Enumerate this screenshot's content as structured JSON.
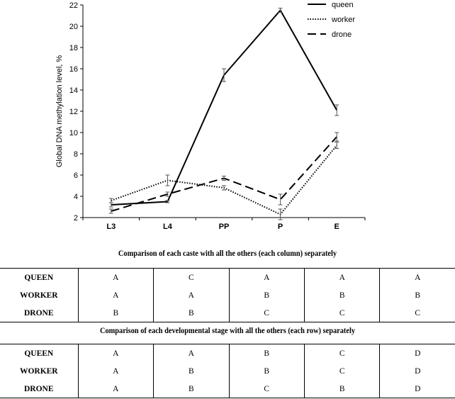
{
  "chart_data": {
    "type": "line",
    "categories": [
      "L3",
      "L4",
      "PP",
      "P",
      "E"
    ],
    "ylabel": "Global DNA methylation level, %",
    "ylim": [
      2,
      22
    ],
    "yticks": [
      2,
      4,
      6,
      8,
      10,
      12,
      14,
      16,
      18,
      20,
      22
    ],
    "grid": false,
    "legend_position": "top-right",
    "series": [
      {
        "name": "queen",
        "style": "solid",
        "values": [
          3.2,
          3.5,
          15.4,
          21.5,
          12.1
        ],
        "errors": [
          0.2,
          0.1,
          0.6,
          0.2,
          0.5
        ]
      },
      {
        "name": "worker",
        "style": "dotted",
        "values": [
          3.6,
          5.5,
          4.8,
          2.3,
          8.8
        ],
        "errors": [
          0.2,
          0.5,
          0.2,
          0.5,
          0.3
        ]
      },
      {
        "name": "drone",
        "style": "dashed",
        "values": [
          2.6,
          4.2,
          5.7,
          3.7,
          9.6
        ],
        "errors": [
          0.2,
          0.2,
          0.2,
          0.5,
          0.4
        ]
      }
    ]
  },
  "table1": {
    "caption": "Comparison of each caste with all the others (each column) separately",
    "rows": [
      {
        "label": "QUEEN",
        "cells": [
          "A",
          "C",
          "A",
          "A",
          "A"
        ]
      },
      {
        "label": "WORKER",
        "cells": [
          "A",
          "A",
          "B",
          "B",
          "B"
        ]
      },
      {
        "label": "DRONE",
        "cells": [
          "B",
          "B",
          "C",
          "C",
          "C"
        ]
      }
    ]
  },
  "table2": {
    "caption": "Comparison of each developmental stage with all the others (each row) separately",
    "rows": [
      {
        "label": "QUEEN",
        "cells": [
          "A",
          "A",
          "B",
          "C",
          "D"
        ]
      },
      {
        "label": "WORKER",
        "cells": [
          "A",
          "B",
          "B",
          "C",
          "D"
        ]
      },
      {
        "label": "DRONE",
        "cells": [
          "A",
          "B",
          "C",
          "B",
          "D"
        ]
      }
    ]
  }
}
